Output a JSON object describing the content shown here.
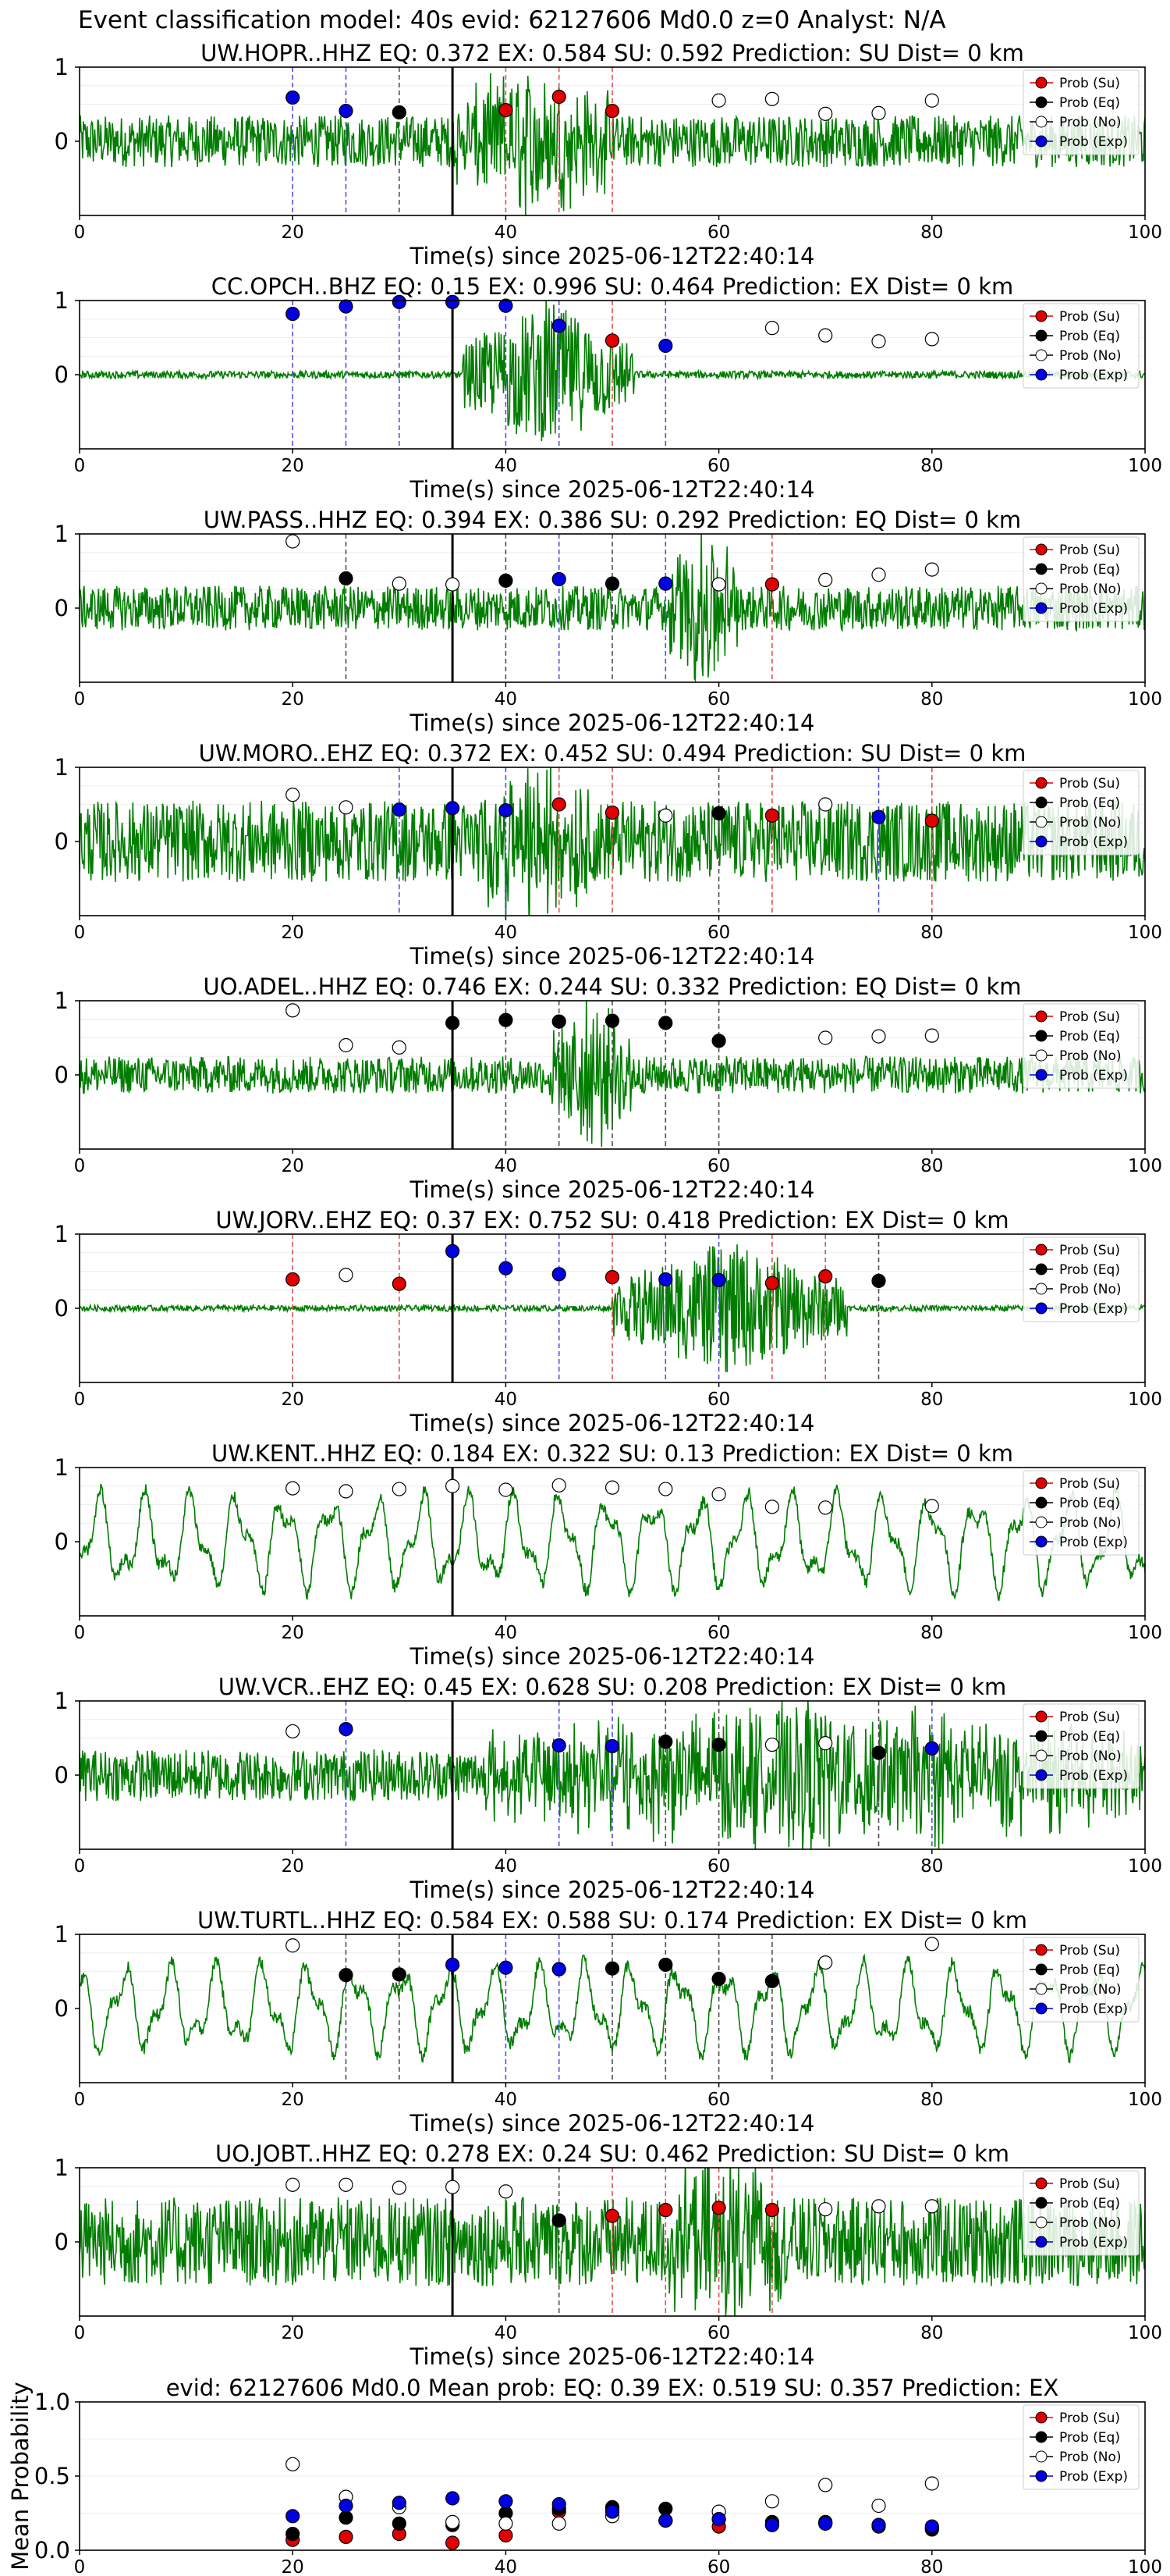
{
  "suptitle": "Event classification model: 40s evid: 62127606 Md0.0 z=0 Analyst: N/A",
  "xlabel": "Time(s) since 2025-06-12T22:40:14",
  "legend_labels": [
    "Prob (Su)",
    "Prob (Eq)",
    "Prob (No)",
    "Prob (Exp)"
  ],
  "colors": {
    "su": "#e00000",
    "eq": "#000000",
    "no": "#ffffff",
    "exp": "#0000e0",
    "trace": "#007d00",
    "su_line": "#e05050",
    "eq_line": "#505050",
    "exp_line": "#5050e0",
    "pick_line": "#000000"
  },
  "chart_data": [
    {
      "type": "line",
      "title": "UW.HOPR..HHZ   EQ: 0.372  EX: 0.584  SU: 0.592   Prediction: SU    Dist= 0 km",
      "xlim": [
        0,
        100
      ],
      "ylim": [
        -1,
        1
      ],
      "yticks": [
        1,
        0
      ],
      "xticks": [
        0,
        20,
        40,
        60,
        80,
        100
      ],
      "pick_time": 35,
      "trace_amplitude": 0.35,
      "event_window": [
        35,
        50
      ],
      "event_amplitude": 0.9,
      "trace_style": "noise",
      "points": [
        {
          "x": 20,
          "y": 0.59,
          "cls": "exp"
        },
        {
          "x": 25,
          "y": 0.41,
          "cls": "exp"
        },
        {
          "x": 30,
          "y": 0.39,
          "cls": "eq"
        },
        {
          "x": 40,
          "y": 0.42,
          "cls": "su"
        },
        {
          "x": 45,
          "y": 0.6,
          "cls": "su"
        },
        {
          "x": 50,
          "y": 0.41,
          "cls": "su"
        },
        {
          "x": 60,
          "y": 0.55,
          "cls": "no"
        },
        {
          "x": 65,
          "y": 0.57,
          "cls": "no"
        },
        {
          "x": 70,
          "y": 0.37,
          "cls": "no"
        },
        {
          "x": 75,
          "y": 0.38,
          "cls": "no"
        },
        {
          "x": 80,
          "y": 0.55,
          "cls": "no"
        }
      ]
    },
    {
      "type": "line",
      "title": "CC.OPCH..BHZ   EQ: 0.15  EX: 0.996  SU: 0.464   Prediction: EX    Dist= 0 km",
      "xlim": [
        0,
        100
      ],
      "ylim": [
        -1,
        1
      ],
      "yticks": [
        1,
        0
      ],
      "xticks": [
        0,
        20,
        40,
        60,
        80,
        100
      ],
      "pick_time": 35,
      "trace_amplitude": 0.05,
      "event_window": [
        36,
        52
      ],
      "event_amplitude": 1.0,
      "trace_style": "quiet",
      "points": [
        {
          "x": 20,
          "y": 0.82,
          "cls": "exp"
        },
        {
          "x": 25,
          "y": 0.92,
          "cls": "exp"
        },
        {
          "x": 30,
          "y": 0.98,
          "cls": "exp"
        },
        {
          "x": 35,
          "y": 0.98,
          "cls": "exp"
        },
        {
          "x": 40,
          "y": 0.93,
          "cls": "exp"
        },
        {
          "x": 45,
          "y": 0.66,
          "cls": "exp"
        },
        {
          "x": 50,
          "y": 0.46,
          "cls": "su"
        },
        {
          "x": 55,
          "y": 0.39,
          "cls": "exp"
        },
        {
          "x": 65,
          "y": 0.63,
          "cls": "no"
        },
        {
          "x": 70,
          "y": 0.53,
          "cls": "no"
        },
        {
          "x": 75,
          "y": 0.45,
          "cls": "no"
        },
        {
          "x": 80,
          "y": 0.48,
          "cls": "no"
        }
      ]
    },
    {
      "type": "line",
      "title": "UW.PASS..HHZ   EQ: 0.394  EX: 0.386  SU: 0.292   Prediction: EQ    Dist= 0 km",
      "xlim": [
        0,
        100
      ],
      "ylim": [
        -1,
        1
      ],
      "yticks": [
        1,
        0
      ],
      "xticks": [
        0,
        20,
        40,
        60,
        80,
        100
      ],
      "pick_time": 35,
      "trace_amplitude": 0.3,
      "event_window": [
        55,
        62
      ],
      "event_amplitude": 1.0,
      "trace_style": "noise",
      "points": [
        {
          "x": 20,
          "y": 0.9,
          "cls": "no"
        },
        {
          "x": 25,
          "y": 0.4,
          "cls": "eq"
        },
        {
          "x": 30,
          "y": 0.33,
          "cls": "no"
        },
        {
          "x": 35,
          "y": 0.32,
          "cls": "no"
        },
        {
          "x": 40,
          "y": 0.37,
          "cls": "eq"
        },
        {
          "x": 45,
          "y": 0.39,
          "cls": "exp"
        },
        {
          "x": 50,
          "y": 0.33,
          "cls": "eq"
        },
        {
          "x": 55,
          "y": 0.33,
          "cls": "exp"
        },
        {
          "x": 60,
          "y": 0.32,
          "cls": "no"
        },
        {
          "x": 65,
          "y": 0.32,
          "cls": "su"
        },
        {
          "x": 70,
          "y": 0.38,
          "cls": "no"
        },
        {
          "x": 75,
          "y": 0.45,
          "cls": "no"
        },
        {
          "x": 80,
          "y": 0.52,
          "cls": "no"
        }
      ]
    },
    {
      "type": "line",
      "title": "UW.MORO..EHZ   EQ: 0.372  EX: 0.452  SU: 0.494   Prediction: SU    Dist= 0 km",
      "xlim": [
        0,
        100
      ],
      "ylim": [
        -1,
        1
      ],
      "yticks": [
        1,
        0
      ],
      "xticks": [
        0,
        20,
        40,
        60,
        80,
        100
      ],
      "pick_time": 35,
      "trace_amplitude": 0.55,
      "event_window": [
        38,
        48
      ],
      "event_amplitude": 0.9,
      "trace_style": "noise",
      "points": [
        {
          "x": 20,
          "y": 0.63,
          "cls": "no"
        },
        {
          "x": 25,
          "y": 0.46,
          "cls": "no"
        },
        {
          "x": 30,
          "y": 0.43,
          "cls": "exp"
        },
        {
          "x": 35,
          "y": 0.45,
          "cls": "exp"
        },
        {
          "x": 40,
          "y": 0.42,
          "cls": "exp"
        },
        {
          "x": 45,
          "y": 0.5,
          "cls": "su"
        },
        {
          "x": 50,
          "y": 0.39,
          "cls": "su"
        },
        {
          "x": 55,
          "y": 0.35,
          "cls": "no"
        },
        {
          "x": 60,
          "y": 0.38,
          "cls": "eq"
        },
        {
          "x": 65,
          "y": 0.35,
          "cls": "su"
        },
        {
          "x": 70,
          "y": 0.5,
          "cls": "no"
        },
        {
          "x": 75,
          "y": 0.33,
          "cls": "exp"
        },
        {
          "x": 80,
          "y": 0.28,
          "cls": "su"
        }
      ]
    },
    {
      "type": "line",
      "title": "UO.ADEL..HHZ   EQ: 0.746  EX: 0.244  SU: 0.332   Prediction: EQ    Dist= 0 km",
      "xlim": [
        0,
        100
      ],
      "ylim": [
        -1,
        1
      ],
      "yticks": [
        1,
        0
      ],
      "xticks": [
        0,
        20,
        40,
        60,
        80,
        100
      ],
      "pick_time": 35,
      "trace_amplitude": 0.25,
      "event_window": [
        44,
        52
      ],
      "event_amplitude": 1.0,
      "trace_style": "noise",
      "points": [
        {
          "x": 20,
          "y": 0.87,
          "cls": "no"
        },
        {
          "x": 25,
          "y": 0.4,
          "cls": "no"
        },
        {
          "x": 30,
          "y": 0.37,
          "cls": "no"
        },
        {
          "x": 35,
          "y": 0.7,
          "cls": "eq"
        },
        {
          "x": 40,
          "y": 0.74,
          "cls": "eq"
        },
        {
          "x": 45,
          "y": 0.72,
          "cls": "eq"
        },
        {
          "x": 50,
          "y": 0.73,
          "cls": "eq"
        },
        {
          "x": 55,
          "y": 0.7,
          "cls": "eq"
        },
        {
          "x": 60,
          "y": 0.46,
          "cls": "eq"
        },
        {
          "x": 70,
          "y": 0.5,
          "cls": "no"
        },
        {
          "x": 75,
          "y": 0.52,
          "cls": "no"
        },
        {
          "x": 80,
          "y": 0.53,
          "cls": "no"
        }
      ]
    },
    {
      "type": "line",
      "title": "UW.JORV..EHZ   EQ: 0.37  EX: 0.752  SU: 0.418   Prediction: EX    Dist= 0 km",
      "xlim": [
        0,
        100
      ],
      "ylim": [
        -1,
        1
      ],
      "yticks": [
        1,
        0
      ],
      "xticks": [
        0,
        20,
        40,
        60,
        80,
        100
      ],
      "pick_time": 35,
      "trace_amplitude": 0.04,
      "event_window": [
        50,
        72
      ],
      "event_amplitude": 0.9,
      "trace_style": "quiet",
      "points": [
        {
          "x": 20,
          "y": 0.39,
          "cls": "su"
        },
        {
          "x": 25,
          "y": 0.45,
          "cls": "no"
        },
        {
          "x": 30,
          "y": 0.33,
          "cls": "su"
        },
        {
          "x": 35,
          "y": 0.77,
          "cls": "exp"
        },
        {
          "x": 40,
          "y": 0.54,
          "cls": "exp"
        },
        {
          "x": 45,
          "y": 0.46,
          "cls": "exp"
        },
        {
          "x": 50,
          "y": 0.42,
          "cls": "su"
        },
        {
          "x": 55,
          "y": 0.39,
          "cls": "exp"
        },
        {
          "x": 60,
          "y": 0.38,
          "cls": "exp"
        },
        {
          "x": 65,
          "y": 0.34,
          "cls": "su"
        },
        {
          "x": 70,
          "y": 0.43,
          "cls": "su"
        },
        {
          "x": 75,
          "y": 0.37,
          "cls": "eq"
        }
      ]
    },
    {
      "type": "line",
      "title": "UW.KENT..HHZ   EQ: 0.184  EX: 0.322  SU: 0.13   Prediction: EX    Dist= 0 km",
      "xlim": [
        0,
        100
      ],
      "ylim": [
        -1,
        1
      ],
      "yticks": [
        1,
        0
      ],
      "xticks": [
        0,
        20,
        40,
        60,
        80,
        100
      ],
      "pick_time": 35,
      "trace_amplitude": 0.65,
      "event_window": [
        0,
        0
      ],
      "event_amplitude": 0,
      "trace_style": "wave",
      "points": [
        {
          "x": 20,
          "y": 0.72,
          "cls": "no"
        },
        {
          "x": 25,
          "y": 0.68,
          "cls": "no"
        },
        {
          "x": 30,
          "y": 0.71,
          "cls": "no"
        },
        {
          "x": 35,
          "y": 0.75,
          "cls": "no"
        },
        {
          "x": 40,
          "y": 0.7,
          "cls": "no"
        },
        {
          "x": 45,
          "y": 0.76,
          "cls": "no"
        },
        {
          "x": 50,
          "y": 0.73,
          "cls": "no"
        },
        {
          "x": 55,
          "y": 0.71,
          "cls": "no"
        },
        {
          "x": 60,
          "y": 0.64,
          "cls": "no"
        },
        {
          "x": 65,
          "y": 0.47,
          "cls": "no"
        },
        {
          "x": 70,
          "y": 0.46,
          "cls": "no"
        },
        {
          "x": 80,
          "y": 0.48,
          "cls": "no"
        }
      ]
    },
    {
      "type": "line",
      "title": "UW.VCR..EHZ   EQ: 0.45  EX: 0.628  SU: 0.208   Prediction: EX    Dist= 0 km",
      "xlim": [
        0,
        100
      ],
      "ylim": [
        -1,
        1
      ],
      "yticks": [
        1,
        0
      ],
      "xticks": [
        0,
        20,
        40,
        60,
        80,
        100
      ],
      "pick_time": 35,
      "trace_amplitude": 0.35,
      "event_window": [
        38,
        100
      ],
      "event_amplitude": 0.85,
      "trace_style": "noise",
      "points": [
        {
          "x": 20,
          "y": 0.59,
          "cls": "no"
        },
        {
          "x": 25,
          "y": 0.62,
          "cls": "exp"
        },
        {
          "x": 45,
          "y": 0.4,
          "cls": "exp"
        },
        {
          "x": 50,
          "y": 0.39,
          "cls": "exp"
        },
        {
          "x": 55,
          "y": 0.45,
          "cls": "eq"
        },
        {
          "x": 60,
          "y": 0.41,
          "cls": "eq"
        },
        {
          "x": 65,
          "y": 0.41,
          "cls": "no"
        },
        {
          "x": 70,
          "y": 0.43,
          "cls": "no"
        },
        {
          "x": 75,
          "y": 0.3,
          "cls": "eq"
        },
        {
          "x": 80,
          "y": 0.36,
          "cls": "exp"
        }
      ]
    },
    {
      "type": "line",
      "title": "UW.TURTL..HHZ   EQ: 0.584  EX: 0.588  SU: 0.174   Prediction: EX    Dist= 0 km",
      "xlim": [
        0,
        100
      ],
      "ylim": [
        -1,
        1
      ],
      "yticks": [
        1,
        0
      ],
      "xticks": [
        0,
        20,
        40,
        60,
        80,
        100
      ],
      "pick_time": 35,
      "trace_amplitude": 0.6,
      "event_window": [
        0,
        0
      ],
      "event_amplitude": 0,
      "trace_style": "wave",
      "points": [
        {
          "x": 20,
          "y": 0.85,
          "cls": "no"
        },
        {
          "x": 25,
          "y": 0.45,
          "cls": "eq"
        },
        {
          "x": 30,
          "y": 0.46,
          "cls": "eq"
        },
        {
          "x": 35,
          "y": 0.59,
          "cls": "exp"
        },
        {
          "x": 40,
          "y": 0.55,
          "cls": "exp"
        },
        {
          "x": 45,
          "y": 0.53,
          "cls": "exp"
        },
        {
          "x": 50,
          "y": 0.54,
          "cls": "eq"
        },
        {
          "x": 55,
          "y": 0.59,
          "cls": "eq"
        },
        {
          "x": 60,
          "y": 0.4,
          "cls": "eq"
        },
        {
          "x": 65,
          "y": 0.37,
          "cls": "eq"
        },
        {
          "x": 70,
          "y": 0.62,
          "cls": "no"
        },
        {
          "x": 80,
          "y": 0.87,
          "cls": "no"
        }
      ]
    },
    {
      "type": "line",
      "title": "UO.JOBT..HHZ   EQ: 0.278  EX: 0.24  SU: 0.462   Prediction: SU    Dist= 0 km",
      "xlim": [
        0,
        100
      ],
      "ylim": [
        -1,
        1
      ],
      "yticks": [
        1,
        0
      ],
      "xticks": [
        0,
        20,
        40,
        60,
        80,
        100
      ],
      "pick_time": 35,
      "trace_amplitude": 0.6,
      "event_window": [
        55,
        66
      ],
      "event_amplitude": 0.9,
      "trace_style": "noise",
      "points": [
        {
          "x": 20,
          "y": 0.77,
          "cls": "no"
        },
        {
          "x": 25,
          "y": 0.77,
          "cls": "no"
        },
        {
          "x": 30,
          "y": 0.73,
          "cls": "no"
        },
        {
          "x": 35,
          "y": 0.74,
          "cls": "no"
        },
        {
          "x": 40,
          "y": 0.68,
          "cls": "no"
        },
        {
          "x": 45,
          "y": 0.29,
          "cls": "eq"
        },
        {
          "x": 50,
          "y": 0.35,
          "cls": "su"
        },
        {
          "x": 55,
          "y": 0.43,
          "cls": "su"
        },
        {
          "x": 60,
          "y": 0.46,
          "cls": "su"
        },
        {
          "x": 65,
          "y": 0.43,
          "cls": "su"
        },
        {
          "x": 70,
          "y": 0.44,
          "cls": "no"
        },
        {
          "x": 75,
          "y": 0.48,
          "cls": "no"
        },
        {
          "x": 80,
          "y": 0.48,
          "cls": "no"
        }
      ]
    },
    {
      "type": "scatter",
      "title": "evid: 62127606  Md0.0   Mean prob:   EQ: 0.39  EX: 0.519  SU: 0.357   Prediction: EX",
      "ylabel": "Mean Probability",
      "xlim": [
        0,
        100
      ],
      "ylim": [
        0,
        1
      ],
      "yticks": [
        1.0,
        0.5,
        0.0
      ],
      "ytick_labels": [
        "1.0",
        "0.5",
        "0.0"
      ],
      "xticks": [
        0,
        20,
        40,
        60,
        80,
        100
      ],
      "series": [
        {
          "name": "Prob (Su)",
          "cls": "su",
          "x": [
            20,
            25,
            30,
            35,
            40,
            45,
            50,
            55,
            60,
            65,
            70,
            75,
            80
          ],
          "y": [
            0.07,
            0.09,
            0.11,
            0.05,
            0.1,
            0.26,
            0.27,
            0.2,
            0.16,
            0.17,
            0.18,
            0.16,
            0.15
          ]
        },
        {
          "name": "Prob (Eq)",
          "cls": "eq",
          "x": [
            20,
            25,
            30,
            35,
            40,
            45,
            50,
            55,
            60,
            65,
            70,
            75,
            80
          ],
          "y": [
            0.11,
            0.22,
            0.18,
            0.17,
            0.25,
            0.28,
            0.29,
            0.28,
            0.21,
            0.19,
            0.19,
            0.17,
            0.14
          ]
        },
        {
          "name": "Prob (No)",
          "cls": "no",
          "x": [
            20,
            25,
            30,
            35,
            40,
            45,
            50,
            55,
            60,
            65,
            70,
            75,
            80
          ],
          "y": [
            0.58,
            0.36,
            0.29,
            0.19,
            0.18,
            0.18,
            0.23,
            0.2,
            0.26,
            0.33,
            0.44,
            0.3,
            0.45
          ]
        },
        {
          "name": "Prob (Exp)",
          "cls": "exp",
          "x": [
            20,
            25,
            30,
            35,
            40,
            45,
            50,
            55,
            60,
            65,
            70,
            75,
            80
          ],
          "y": [
            0.23,
            0.3,
            0.32,
            0.35,
            0.33,
            0.31,
            0.26,
            0.2,
            0.21,
            0.17,
            0.18,
            0.17,
            0.16
          ]
        }
      ]
    }
  ]
}
